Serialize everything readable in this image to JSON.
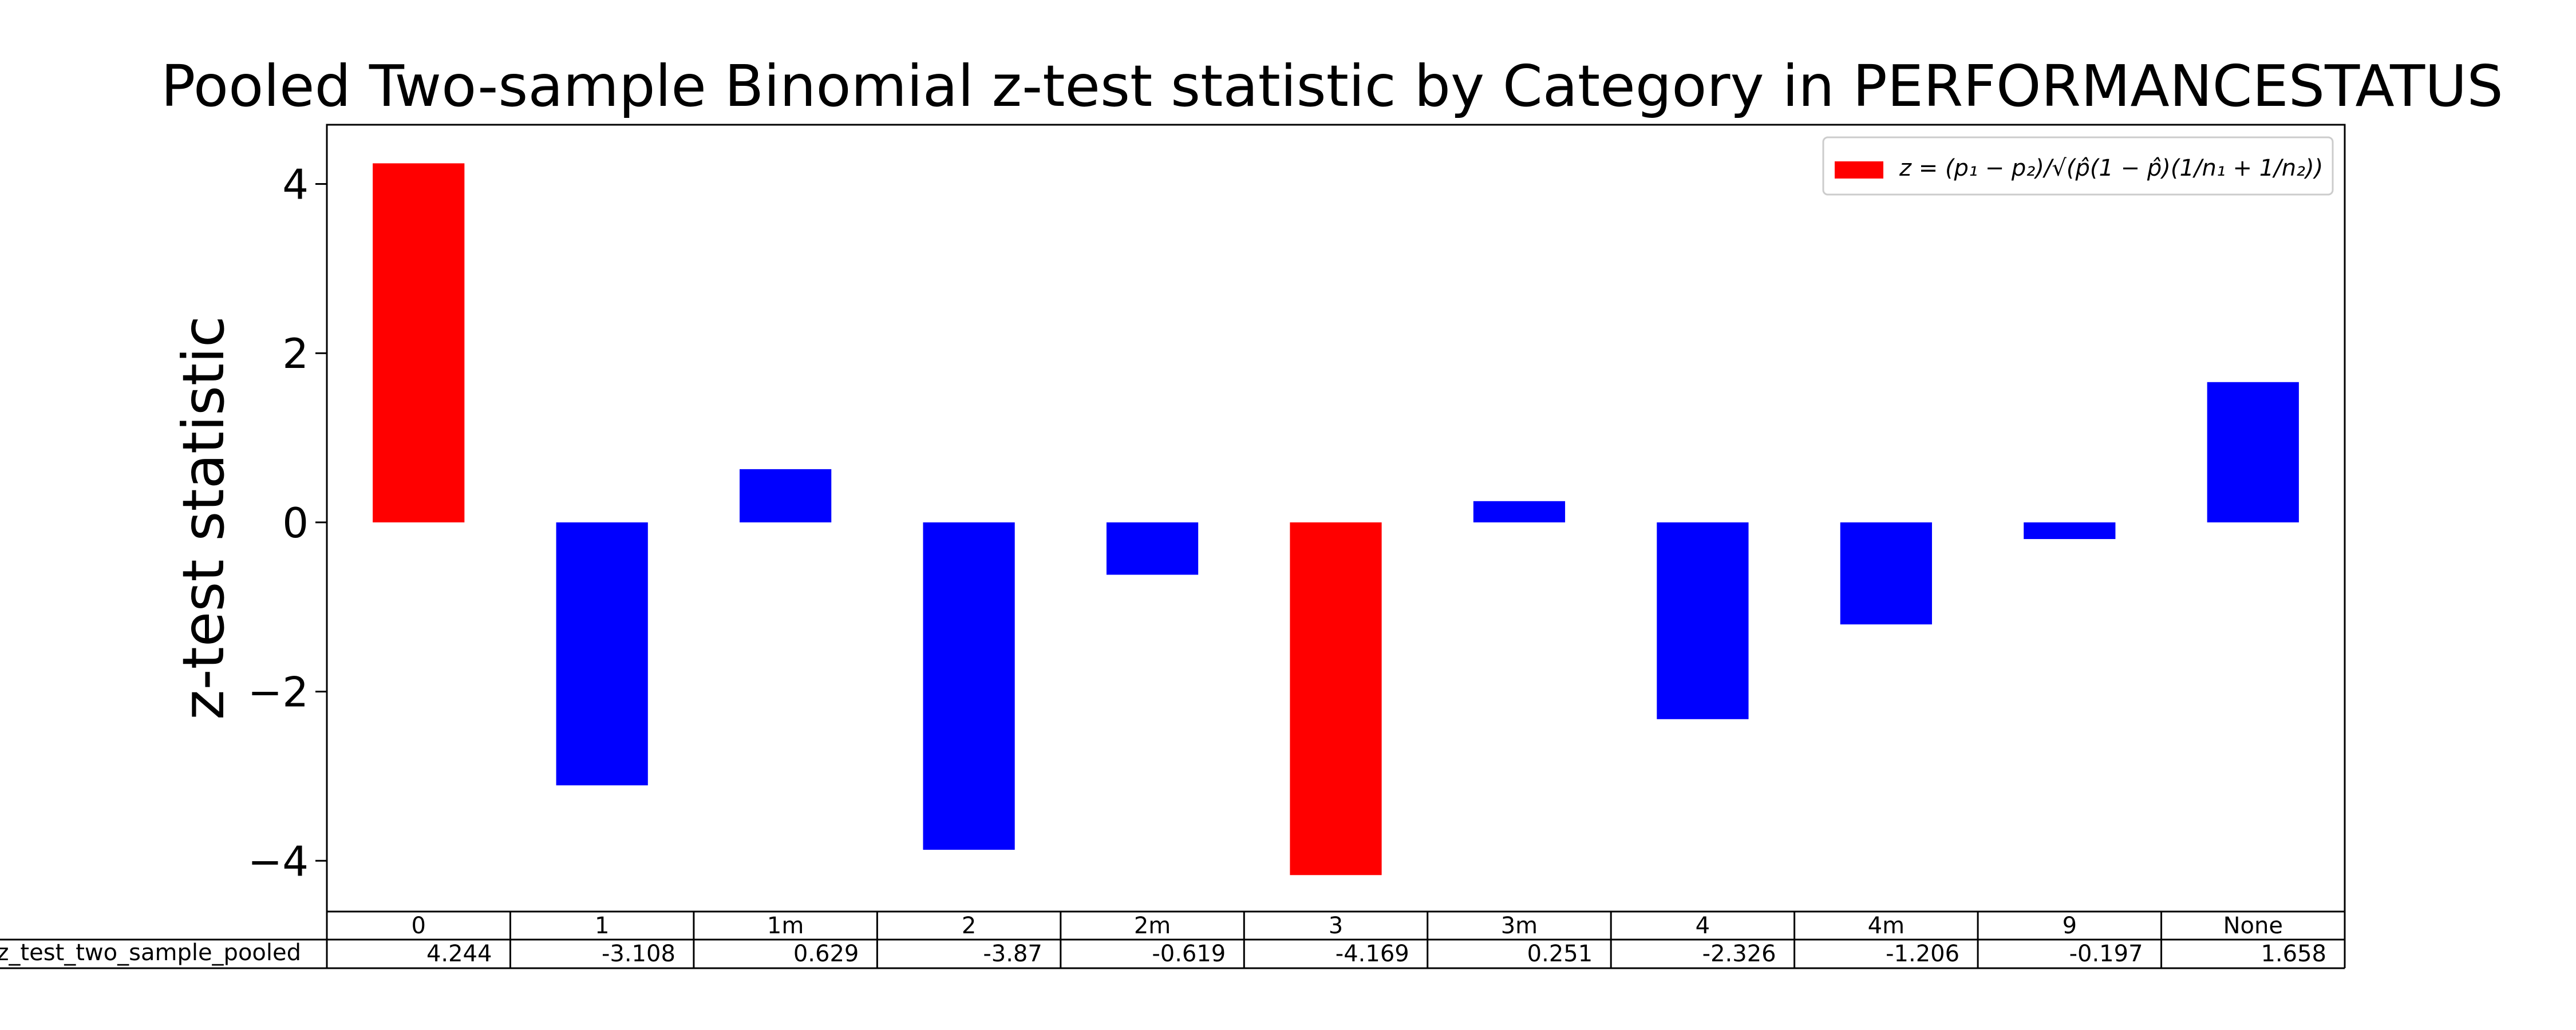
{
  "chart_data": {
    "type": "bar",
    "title": "Pooled Two-sample Binomial z-test statistic by Category in PERFORMANCESTATUS",
    "ylabel": "z-test statistic",
    "xlabel": "",
    "ylim": [
      -4.6,
      4.7
    ],
    "yticks": [
      4,
      2,
      0,
      -2,
      -4
    ],
    "ytick_labels": [
      "4",
      "2",
      "0",
      "−2",
      "−4"
    ],
    "categories": [
      "0",
      "1",
      "1m",
      "2",
      "2m",
      "3",
      "3m",
      "4",
      "4m",
      "9",
      "None"
    ],
    "values": [
      4.244,
      -3.108,
      0.629,
      -3.87,
      -0.619,
      -4.169,
      0.251,
      -2.326,
      -1.206,
      -0.197,
      1.658
    ],
    "value_labels": [
      "4.244",
      "-3.108",
      "0.629",
      "-3.87",
      "-0.619",
      "-4.169",
      "0.251",
      "-2.326",
      "-1.206",
      "-0.197",
      "1.658"
    ],
    "bar_colors": [
      "#ff0000",
      "#0000ff",
      "#0000ff",
      "#0000ff",
      "#0000ff",
      "#ff0000",
      "#0000ff",
      "#0000ff",
      "#0000ff",
      "#0000ff",
      "#0000ff"
    ],
    "table_row_label": "z_test_two_sample_pooled",
    "legend": {
      "placement": "upper-right",
      "color": "#ff0000",
      "label": "z = (p₁ − p₂)/√(p̂(1 − p̂)(1/n₁ + 1/n₂))"
    },
    "grid": false
  }
}
